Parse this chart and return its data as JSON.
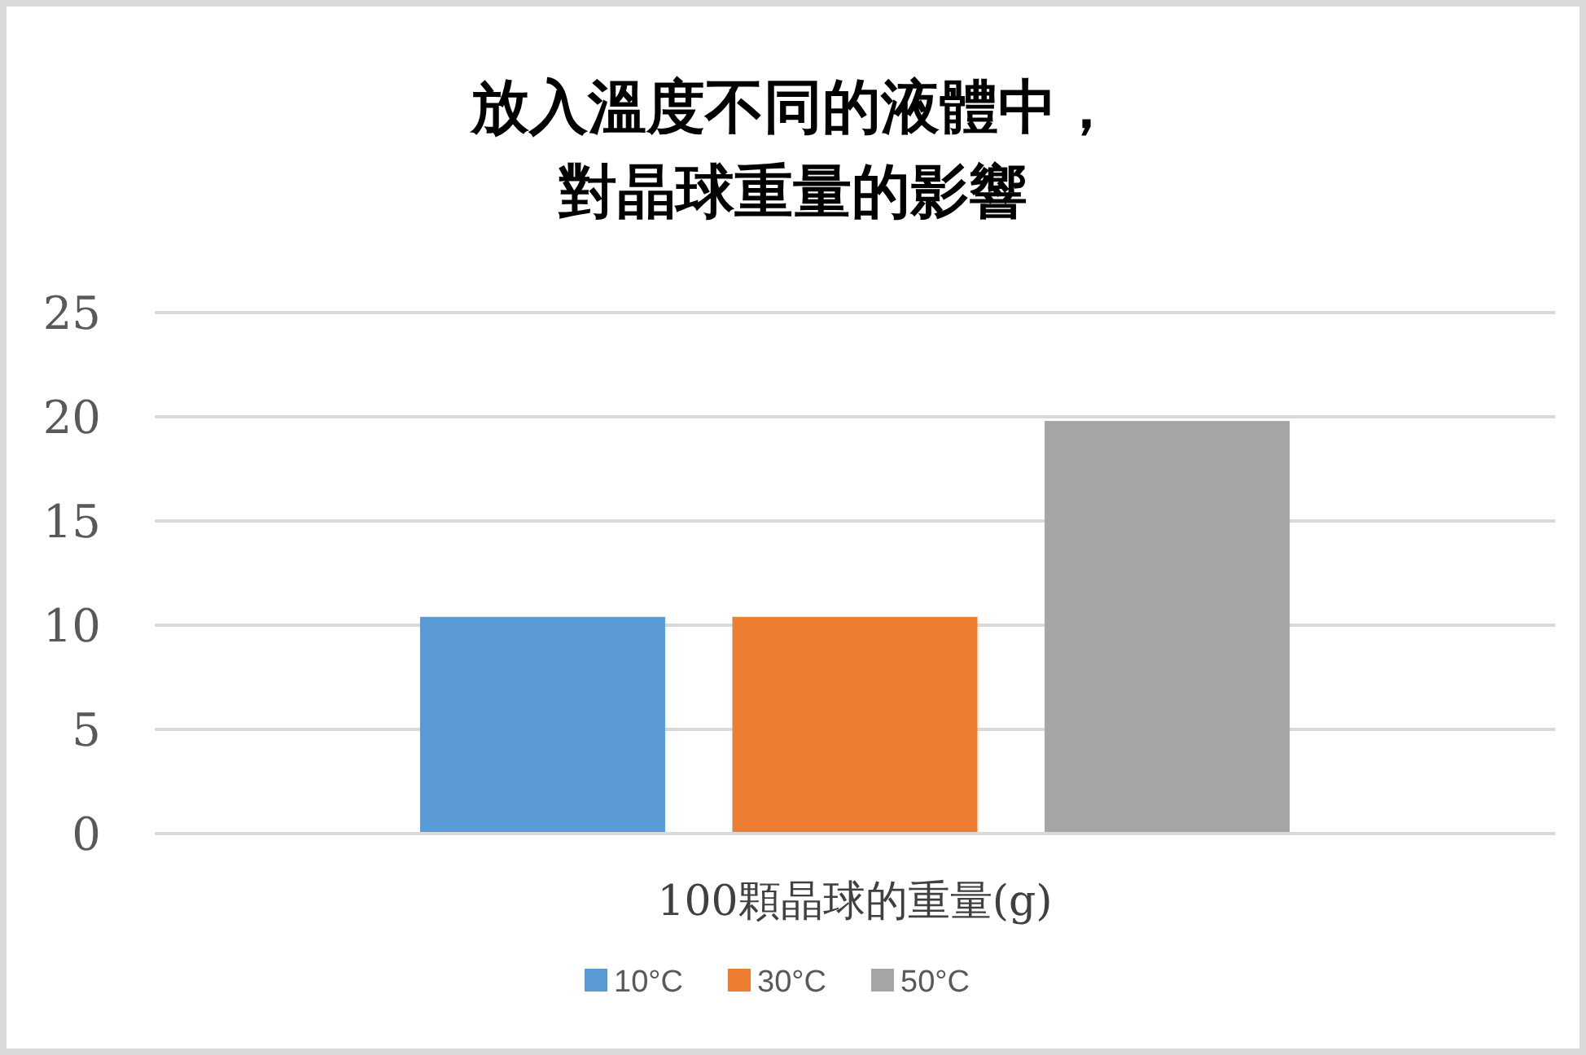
{
  "chart_data": {
    "type": "bar",
    "title": "放入溫度不同的液體中，對晶球重量的影響",
    "categories": [
      "100顆晶球的重量(g)"
    ],
    "series": [
      {
        "name": "10°C",
        "color": "#5b9bd5",
        "values": [
          10.4
        ]
      },
      {
        "name": "30°C",
        "color": "#ed7d31",
        "values": [
          10.4
        ]
      },
      {
        "name": "50°C",
        "color": "#a5a5a5",
        "values": [
          19.8
        ]
      }
    ],
    "ylim": [
      0,
      25
    ],
    "yticks": [
      0,
      5,
      10,
      15,
      20,
      25
    ],
    "grid": "y",
    "legend": "bottom"
  }
}
